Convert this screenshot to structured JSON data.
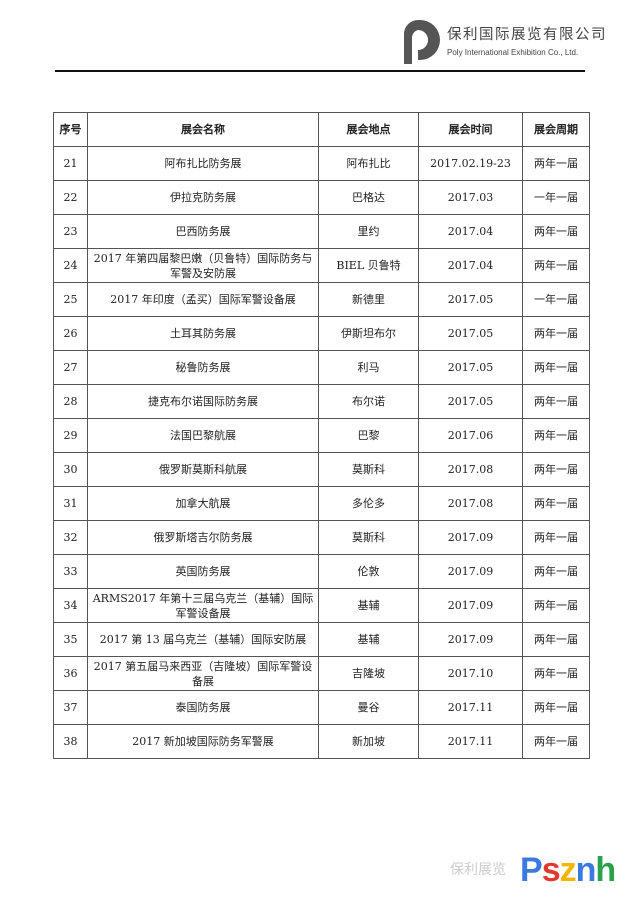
{
  "header": {
    "company_cn": "保利国际展览有限公司",
    "company_en": "Poly International Exhibition Co., Ltd.",
    "logo_color": "#555555"
  },
  "table": {
    "columns": [
      "序号",
      "展会名称",
      "展会地点",
      "展会时间",
      "展会周期"
    ],
    "rows": [
      [
        "21",
        "阿布扎比防务展",
        "阿布扎比",
        "2017.02.19-23",
        "两年一届"
      ],
      [
        "22",
        "伊拉克防务展",
        "巴格达",
        "2017.03",
        "一年一届"
      ],
      [
        "23",
        "巴西防务展",
        "里约",
        "2017.04",
        "两年一届"
      ],
      [
        "24",
        "2017 年第四届黎巴嫩（贝鲁特）国际防务与军警及安防展",
        "BIEL 贝鲁特",
        "2017.04",
        "两年一届"
      ],
      [
        "25",
        "2017 年印度（孟买）国际军警设备展",
        "新德里",
        "2017.05",
        "一年一届"
      ],
      [
        "26",
        "土耳其防务展",
        "伊斯坦布尔",
        "2017.05",
        "两年一届"
      ],
      [
        "27",
        "秘鲁防务展",
        "利马",
        "2017.05",
        "两年一届"
      ],
      [
        "28",
        "捷克布尔诺国际防务展",
        "布尔诺",
        "2017.05",
        "两年一届"
      ],
      [
        "29",
        "法国巴黎航展",
        "巴黎",
        "2017.06",
        "两年一届"
      ],
      [
        "30",
        "俄罗斯莫斯科航展",
        "莫斯科",
        "2017.08",
        "两年一届"
      ],
      [
        "31",
        "加拿大航展",
        "多伦多",
        "2017.08",
        "两年一届"
      ],
      [
        "32",
        "俄罗斯塔吉尔防务展",
        "莫斯科",
        "2017.09",
        "两年一届"
      ],
      [
        "33",
        "英国防务展",
        "伦敦",
        "2017.09",
        "两年一届"
      ],
      [
        "34",
        "ARMS2017 年第十三届乌克兰（基辅）国际军警设备展",
        "基辅",
        "2017.09",
        "两年一届"
      ],
      [
        "35",
        "2017 第 13 届乌克兰（基辅）国际安防展",
        "基辅",
        "2017.09",
        "两年一届"
      ],
      [
        "36",
        "2017 第五届马来西亚（吉隆坡）国际军警设备展",
        "吉隆坡",
        "2017.10",
        "两年一届"
      ],
      [
        "37",
        "泰国防务展",
        "曼谷",
        "2017.11",
        "两年一届"
      ],
      [
        "38",
        "2017 新加坡国际防务军警展",
        "新加坡",
        "2017.11",
        "两年一届"
      ]
    ]
  },
  "watermark": {
    "text": "保利展览",
    "logo_text": "Psznh",
    "colors": [
      "#3b7be0",
      "#e03a2f",
      "#f2b600",
      "#3b7be0",
      "#2aa14a"
    ]
  }
}
